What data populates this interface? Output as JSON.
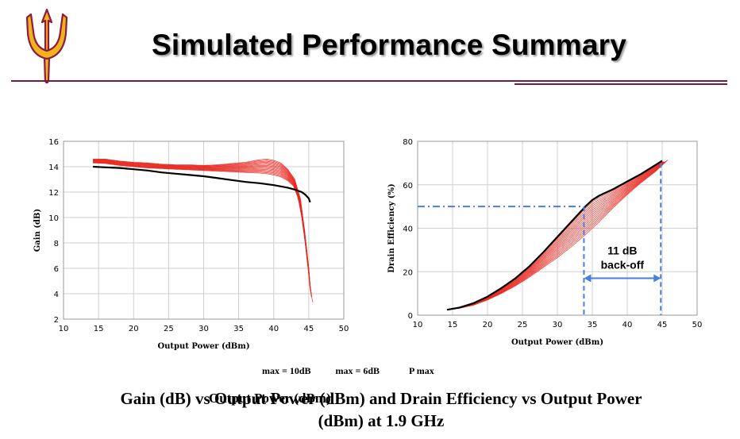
{
  "title": "Simulated Performance Summary",
  "logo": {
    "icon": "pitchfork-logo",
    "colors": {
      "gold": "#f2b21d",
      "maroon": "#8c1d40"
    }
  },
  "colors": {
    "rule": "#7a1a3a",
    "sweep": "#e8271f",
    "main_trace": "#000000",
    "marker_line": "#4a7de0"
  },
  "caption_ghost_text": [
    "max = 10dB",
    "max = 6dB",
    "P max"
  ],
  "caption_ghost_text_2": "Output Power (dBm)",
  "caption": {
    "line1": "Gain (dB) vs Output Power (dBm) and Drain Efficiency vs Output Power",
    "line2": "(dBm) at 1.9 GHz"
  },
  "chart_data": [
    {
      "type": "line",
      "title": "",
      "xlabel": "Output Power (dBm)",
      "ylabel": "Gain (dB)",
      "xlim": [
        10,
        50
      ],
      "ylim": [
        2,
        16
      ],
      "xticks": [
        10,
        15,
        20,
        25,
        30,
        35,
        40,
        45,
        50
      ],
      "yticks": [
        2,
        4,
        6,
        8,
        10,
        12,
        14,
        16
      ],
      "grid": true,
      "legend": "none",
      "series": [
        {
          "role": "main",
          "x": [
            14.2,
            16,
            18,
            20,
            22,
            24,
            26,
            28,
            30,
            32,
            34,
            36,
            38,
            40,
            41,
            42,
            43,
            44,
            44.5,
            45,
            45.2
          ],
          "y": [
            14.0,
            13.95,
            13.9,
            13.8,
            13.7,
            13.55,
            13.45,
            13.35,
            13.25,
            13.1,
            12.95,
            12.8,
            12.7,
            12.55,
            12.45,
            12.35,
            12.2,
            12.0,
            11.8,
            11.5,
            11.2
          ]
        },
        {
          "role": "sweep-high",
          "x": [
            14.2,
            16,
            18,
            20,
            22,
            24,
            26,
            28,
            30,
            32,
            34,
            36,
            38,
            39,
            40,
            41,
            42,
            43,
            43.8,
            44.4,
            45,
            45.3,
            45.6
          ],
          "y": [
            14.6,
            14.6,
            14.45,
            14.35,
            14.3,
            14.2,
            14.15,
            14.15,
            14.1,
            14.15,
            14.25,
            14.35,
            14.55,
            14.6,
            14.5,
            14.3,
            13.8,
            13.0,
            11.5,
            9.0,
            6.0,
            4.0,
            3.3
          ]
        },
        {
          "role": "sweep-low",
          "x": [
            14.2,
            16,
            18,
            20,
            22,
            24,
            26,
            28,
            30,
            32,
            34,
            36,
            38,
            39,
            40,
            41,
            42,
            42.8,
            43.5,
            44,
            44.5,
            45,
            45.3
          ],
          "y": [
            14.3,
            14.25,
            14.1,
            14.0,
            13.9,
            13.85,
            13.8,
            13.75,
            13.7,
            13.65,
            13.6,
            13.55,
            13.5,
            13.45,
            13.35,
            13.2,
            12.9,
            12.5,
            11.5,
            10.0,
            8.0,
            5.5,
            3.8
          ]
        }
      ]
    },
    {
      "type": "line",
      "title": "",
      "xlabel": "Output Power (dBm)",
      "ylabel": "Drain Efficiency (%)",
      "xlim": [
        10,
        50
      ],
      "ylim": [
        0,
        80
      ],
      "xticks": [
        10,
        15,
        20,
        25,
        30,
        35,
        40,
        45,
        50
      ],
      "yticks": [
        0,
        20,
        40,
        60,
        80
      ],
      "grid": true,
      "legend": "none",
      "series": [
        {
          "role": "main",
          "x": [
            14.2,
            16,
            18,
            20,
            22,
            24,
            26,
            28,
            30,
            32,
            33,
            34,
            35,
            36,
            38,
            40,
            42,
            44,
            45
          ],
          "y": [
            2.5,
            3.5,
            5.5,
            8.5,
            12.5,
            17.0,
            22.5,
            29.0,
            36.0,
            43.0,
            46.5,
            50.0,
            53.0,
            55.0,
            58.0,
            61.5,
            65.0,
            69.0,
            71.0
          ]
        },
        {
          "role": "sweep-low",
          "x": [
            14.2,
            16,
            18,
            20,
            22,
            24,
            26,
            28,
            30,
            32,
            34,
            36,
            38,
            40,
            42,
            44,
            45,
            45.8
          ],
          "y": [
            2.5,
            3.2,
            4.6,
            7.0,
            10.0,
            13.5,
            17.5,
            22.0,
            26.5,
            31.5,
            37.0,
            43.0,
            49.5,
            55.5,
            61.0,
            66.0,
            69.0,
            71.5
          ]
        }
      ],
      "annotations": {
        "hline_y": 50,
        "vline_x": [
          33.8,
          44.8
        ],
        "arrow_y": 17,
        "label_line1": "11 dB",
        "label_line2": "back-off"
      }
    }
  ]
}
